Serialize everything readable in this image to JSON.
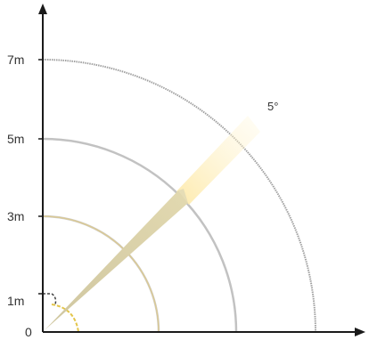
{
  "diagram": {
    "y_axis_labels": [
      "7m",
      "5m",
      "3m",
      "1m",
      "0"
    ],
    "beam_angle_label": "5°"
  },
  "colors": {
    "axis": "#1a1a1a",
    "outer_arc_7m": "#9a9a9a",
    "arc_5m": "#b8b8b8",
    "arc_3m": "#c9c9c9",
    "inner_arc_yellow": "#d8c27a",
    "small_arc_yellow": "#e5c53a",
    "beam_solid": "#d9cfa0",
    "beam_glow": "#fde9a8"
  }
}
